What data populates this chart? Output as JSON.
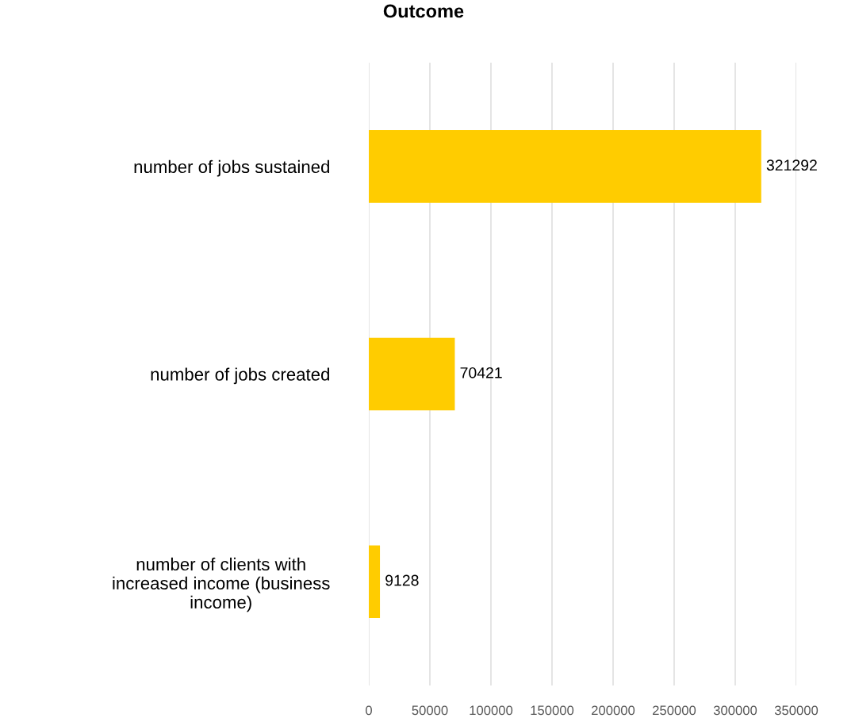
{
  "chart_data": {
    "type": "bar",
    "orientation": "horizontal",
    "title": "Outcome",
    "categories": [
      "number of jobs sustained",
      "number of jobs created",
      "number of clients with\nincreased income (business\nincome)"
    ],
    "values": [
      321292,
      70421,
      9128
    ],
    "color": "#ffcc00",
    "xlim": [
      0,
      350000
    ],
    "xticks": [
      0,
      50000,
      100000,
      150000,
      200000,
      250000,
      300000,
      350000
    ],
    "grid": "x",
    "data_labels": true
  }
}
